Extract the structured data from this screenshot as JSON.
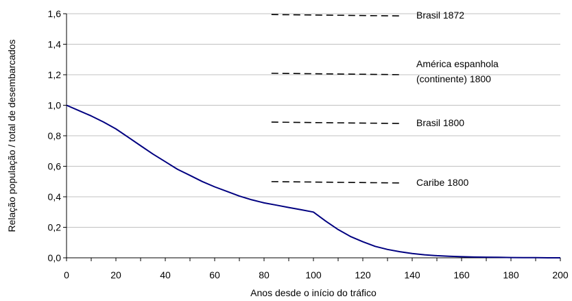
{
  "chart_data": {
    "type": "line",
    "title": "",
    "xlabel": "Anos desde o início do tráfico",
    "ylabel": "Relação população / total de desembarcados",
    "xlim": [
      0,
      200
    ],
    "ylim": [
      0,
      1.6
    ],
    "x_ticks": [
      0,
      20,
      40,
      60,
      80,
      100,
      120,
      140,
      160,
      180,
      200
    ],
    "x_tick_labels": [
      "0",
      "20",
      "40",
      "60",
      "80",
      "100",
      "120",
      "140",
      "160",
      "180",
      "200"
    ],
    "y_ticks": [
      0,
      0.2,
      0.4,
      0.6,
      0.8,
      1.0,
      1.2,
      1.4,
      1.6
    ],
    "y_tick_labels": [
      "0,0",
      "0,2",
      "0,4",
      "0,6",
      "0,8",
      "1,0",
      "1,2",
      "1,4",
      "1,6"
    ],
    "grid": "horizontal",
    "series": [
      {
        "x": [
          0,
          5,
          10,
          15,
          20,
          25,
          30,
          35,
          40,
          45,
          50,
          55,
          60,
          65,
          70,
          75,
          80,
          85,
          90,
          95,
          100,
          105,
          110,
          115,
          120,
          125,
          130,
          135,
          140,
          145,
          150,
          155,
          160,
          165,
          170,
          175,
          180,
          185,
          190,
          195,
          200
        ],
        "y": [
          1.0,
          0.965,
          0.93,
          0.89,
          0.845,
          0.79,
          0.735,
          0.68,
          0.63,
          0.58,
          0.54,
          0.5,
          0.465,
          0.435,
          0.405,
          0.38,
          0.36,
          0.345,
          0.33,
          0.315,
          0.3,
          0.24,
          0.185,
          0.14,
          0.105,
          0.075,
          0.055,
          0.04,
          0.028,
          0.02,
          0.014,
          0.01,
          0.007,
          0.005,
          0.004,
          0.003,
          0.002,
          0.001,
          0.001,
          0.0,
          0.0
        ],
        "color": "#000080"
      }
    ],
    "reference_lines": [
      {
        "label": "Brasil  1872",
        "y": 1.59,
        "x_start": 83,
        "x_end": 135
      },
      {
        "label_lines": [
          "América espanhola",
          "(continente) 1800"
        ],
        "y": 1.205,
        "x_start": 83,
        "x_end": 135
      },
      {
        "label": "Brasil  1800",
        "y": 0.885,
        "x_start": 83,
        "x_end": 135
      },
      {
        "label": "Caribe  1800",
        "y": 0.495,
        "x_start": 83,
        "x_end": 135
      }
    ],
    "colors": {
      "axis": "#000000",
      "grid": "#c0c0c0",
      "line": "#000080",
      "reference": "#000000"
    }
  }
}
